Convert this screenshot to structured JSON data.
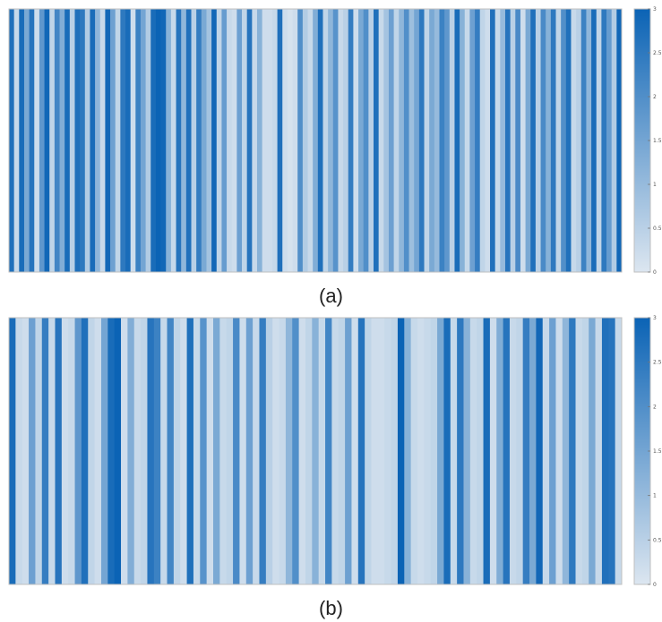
{
  "chart_data": [
    {
      "type": "heatmap",
      "caption": "(a)",
      "colormap": {
        "low": "#ffffff",
        "high": "#0b63b5"
      },
      "clim": [
        0,
        3
      ],
      "colorbar_ticks": [
        "0",
        "0.5",
        "1",
        "1.5",
        "2",
        "2.5",
        "3"
      ],
      "values": [
        2.7,
        0.3,
        2.8,
        1.4,
        2.6,
        0.2,
        1.8,
        2.9,
        0.4,
        2.2,
        1.3,
        2.8,
        0.5,
        2.7,
        2.5,
        0.6,
        2.8,
        1.1,
        0.3,
        2.9,
        1.6,
        0.4,
        2.5,
        2.8,
        0.2,
        2.3,
        1.5,
        0.6,
        2.8,
        3.0,
        2.9,
        1.2,
        0.3,
        2.6,
        1.1,
        2.7,
        0.5,
        2.4,
        1.4,
        0.8,
        2.9,
        0.4,
        1.7,
        0.3,
        0.2,
        1.6,
        0.4,
        2.6,
        0.3,
        1.2,
        0.2,
        0.2,
        0.3,
        2.7,
        0.2,
        0.1,
        0.2,
        2.0,
        0.6,
        0.3,
        1.3,
        2.7,
        0.4,
        1.1,
        1.9,
        0.3,
        0.5,
        2.4,
        0.2,
        1.4,
        2.0,
        0.5,
        2.7,
        0.3,
        0.8,
        1.6,
        0.4,
        1.1,
        2.0,
        0.9,
        1.5,
        2.5,
        0.4,
        1.4,
        1.0,
        2.3,
        1.8,
        0.5,
        2.8,
        1.2,
        0.3,
        1.6,
        2.4,
        0.4,
        0.2,
        2.7,
        0.3,
        1.0,
        2.6,
        0.5,
        2.1,
        0.2,
        1.4,
        2.7,
        0.5,
        2.1,
        1.2,
        2.5,
        0.4,
        2.0,
        2.7,
        0.3,
        0.5,
        2.3,
        1.1,
        2.8,
        0.4,
        2.5,
        1.7,
        0.6,
        2.9
      ]
    },
    {
      "type": "heatmap",
      "caption": "(b)",
      "colormap": {
        "low": "#ffffff",
        "high": "#0b63b5"
      },
      "clim": [
        0,
        3
      ],
      "colorbar_ticks": [
        "0",
        "0.5",
        "1",
        "1.5",
        "2",
        "2.5",
        "3"
      ],
      "values": [
        2.8,
        0.3,
        0.2,
        1.6,
        0.4,
        2.4,
        0.3,
        2.6,
        0.2,
        0.3,
        1.8,
        2.7,
        0.4,
        0.2,
        1.5,
        2.8,
        3.0,
        0.2,
        1.3,
        0.3,
        0.4,
        2.6,
        2.3,
        0.3,
        2.2,
        0.4,
        0.2,
        2.7,
        0.3,
        1.9,
        0.2,
        1.4,
        0.3,
        0.4,
        2.1,
        0.2,
        1.6,
        0.3,
        2.4,
        0.5,
        0.2,
        0.3,
        1.1,
        2.0,
        0.2,
        0.4,
        1.2,
        0.3,
        2.2,
        0.3,
        0.4,
        1.6,
        0.2,
        2.6,
        0.4,
        0.2,
        0.2,
        0.3,
        0.4,
        3.0,
        1.2,
        0.3,
        0.2,
        0.3,
        0.4,
        1.4,
        2.8,
        0.3,
        2.5,
        1.2,
        0.3,
        0.4,
        2.8,
        0.2,
        1.3,
        2.6,
        0.3,
        0.4,
        2.4,
        1.4,
        2.9,
        0.3,
        1.6,
        0.2,
        1.1,
        2.5,
        0.3,
        0.4,
        1.4,
        0.3,
        2.7,
        2.6,
        0.3
      ]
    }
  ]
}
